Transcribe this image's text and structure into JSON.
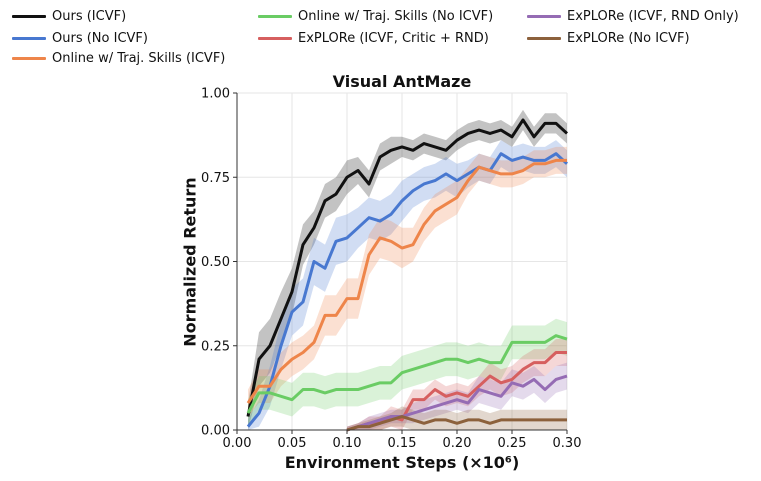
{
  "chart_data": {
    "type": "line",
    "title": "Visual AntMaze",
    "xlabel": "Environment Steps (×10⁶)",
    "ylabel": "Normalized Return",
    "xlim": [
      0.0,
      0.3
    ],
    "ylim": [
      0.0,
      1.0
    ],
    "xticks": [
      0.0,
      0.05,
      0.1,
      0.15,
      0.2,
      0.25,
      0.3
    ],
    "xtick_labels": [
      "0.00",
      "0.05",
      "0.10",
      "0.15",
      "0.20",
      "0.25",
      "0.30"
    ],
    "yticks": [
      0.0,
      0.25,
      0.5,
      0.75,
      1.0
    ],
    "ytick_labels": [
      "0.00",
      "0.25",
      "0.50",
      "0.75",
      "1.00"
    ],
    "grid": true,
    "legend_position": "top",
    "series": [
      {
        "name": "Ours (ICVF)",
        "color": "#111111",
        "x": [
          0.01,
          0.02,
          0.03,
          0.04,
          0.05,
          0.06,
          0.07,
          0.08,
          0.09,
          0.1,
          0.11,
          0.12,
          0.13,
          0.14,
          0.15,
          0.16,
          0.17,
          0.18,
          0.19,
          0.2,
          0.21,
          0.22,
          0.23,
          0.24,
          0.25,
          0.26,
          0.27,
          0.28,
          0.29,
          0.3
        ],
        "y": [
          0.04,
          0.21,
          0.25,
          0.33,
          0.41,
          0.55,
          0.6,
          0.68,
          0.7,
          0.75,
          0.77,
          0.73,
          0.81,
          0.83,
          0.84,
          0.83,
          0.85,
          0.84,
          0.83,
          0.86,
          0.88,
          0.89,
          0.88,
          0.89,
          0.87,
          0.92,
          0.87,
          0.91,
          0.91,
          0.88
        ],
        "band": [
          0.04,
          0.08,
          0.08,
          0.08,
          0.07,
          0.06,
          0.05,
          0.05,
          0.05,
          0.05,
          0.04,
          0.04,
          0.04,
          0.04,
          0.03,
          0.03,
          0.03,
          0.03,
          0.03,
          0.03,
          0.03,
          0.03,
          0.03,
          0.03,
          0.03,
          0.03,
          0.03,
          0.03,
          0.03,
          0.03
        ]
      },
      {
        "name": "Ours (No ICVF)",
        "color": "#4878d0",
        "x": [
          0.01,
          0.02,
          0.03,
          0.04,
          0.05,
          0.06,
          0.07,
          0.08,
          0.09,
          0.1,
          0.11,
          0.12,
          0.13,
          0.14,
          0.15,
          0.16,
          0.17,
          0.18,
          0.19,
          0.2,
          0.21,
          0.22,
          0.23,
          0.24,
          0.25,
          0.26,
          0.27,
          0.28,
          0.29,
          0.3
        ],
        "y": [
          0.01,
          0.05,
          0.13,
          0.25,
          0.35,
          0.38,
          0.5,
          0.48,
          0.56,
          0.57,
          0.6,
          0.63,
          0.62,
          0.64,
          0.68,
          0.71,
          0.73,
          0.74,
          0.76,
          0.74,
          0.76,
          0.78,
          0.77,
          0.82,
          0.8,
          0.81,
          0.8,
          0.8,
          0.82,
          0.79
        ],
        "band": [
          0.02,
          0.04,
          0.06,
          0.07,
          0.07,
          0.07,
          0.07,
          0.07,
          0.07,
          0.07,
          0.06,
          0.06,
          0.06,
          0.06,
          0.06,
          0.05,
          0.05,
          0.05,
          0.05,
          0.05,
          0.04,
          0.04,
          0.04,
          0.04,
          0.04,
          0.04,
          0.04,
          0.04,
          0.04,
          0.04
        ]
      },
      {
        "name": "Online w/ Traj. Skills (ICVF)",
        "color": "#ee854a",
        "x": [
          0.01,
          0.02,
          0.03,
          0.04,
          0.05,
          0.06,
          0.07,
          0.08,
          0.09,
          0.1,
          0.11,
          0.12,
          0.13,
          0.14,
          0.15,
          0.16,
          0.17,
          0.18,
          0.19,
          0.2,
          0.21,
          0.22,
          0.23,
          0.24,
          0.25,
          0.26,
          0.27,
          0.28,
          0.29,
          0.3
        ],
        "y": [
          0.08,
          0.13,
          0.13,
          0.18,
          0.21,
          0.23,
          0.26,
          0.34,
          0.34,
          0.39,
          0.39,
          0.52,
          0.57,
          0.56,
          0.54,
          0.55,
          0.61,
          0.65,
          0.67,
          0.69,
          0.74,
          0.78,
          0.77,
          0.76,
          0.76,
          0.77,
          0.79,
          0.79,
          0.8,
          0.8
        ],
        "band": [
          0.04,
          0.05,
          0.05,
          0.05,
          0.05,
          0.05,
          0.05,
          0.06,
          0.06,
          0.06,
          0.06,
          0.06,
          0.06,
          0.06,
          0.06,
          0.05,
          0.05,
          0.05,
          0.05,
          0.05,
          0.04,
          0.04,
          0.04,
          0.04,
          0.04,
          0.04,
          0.04,
          0.04,
          0.04,
          0.04
        ]
      },
      {
        "name": "Online w/ Traj. Skills (No ICVF)",
        "color": "#6acc64",
        "x": [
          0.01,
          0.02,
          0.03,
          0.04,
          0.05,
          0.06,
          0.07,
          0.08,
          0.09,
          0.1,
          0.11,
          0.12,
          0.13,
          0.14,
          0.15,
          0.16,
          0.17,
          0.18,
          0.19,
          0.2,
          0.21,
          0.22,
          0.23,
          0.24,
          0.25,
          0.26,
          0.27,
          0.28,
          0.29,
          0.3
        ],
        "y": [
          0.05,
          0.11,
          0.11,
          0.1,
          0.09,
          0.12,
          0.12,
          0.11,
          0.12,
          0.12,
          0.12,
          0.13,
          0.14,
          0.14,
          0.17,
          0.18,
          0.19,
          0.2,
          0.21,
          0.21,
          0.2,
          0.21,
          0.2,
          0.2,
          0.26,
          0.26,
          0.26,
          0.26,
          0.28,
          0.27
        ],
        "band": [
          0.04,
          0.05,
          0.05,
          0.05,
          0.05,
          0.05,
          0.05,
          0.05,
          0.05,
          0.05,
          0.05,
          0.05,
          0.05,
          0.05,
          0.05,
          0.05,
          0.05,
          0.05,
          0.05,
          0.05,
          0.05,
          0.05,
          0.05,
          0.05,
          0.05,
          0.05,
          0.05,
          0.05,
          0.05,
          0.05
        ]
      },
      {
        "name": "ExPLORe (ICVF, Critic + RND)",
        "color": "#d65f5f",
        "x": [
          0.1,
          0.11,
          0.12,
          0.13,
          0.14,
          0.15,
          0.16,
          0.17,
          0.18,
          0.19,
          0.2,
          0.21,
          0.22,
          0.23,
          0.24,
          0.25,
          0.26,
          0.27,
          0.28,
          0.29,
          0.3
        ],
        "y": [
          0.0,
          0.01,
          0.02,
          0.02,
          0.04,
          0.03,
          0.09,
          0.09,
          0.12,
          0.1,
          0.11,
          0.1,
          0.13,
          0.16,
          0.14,
          0.15,
          0.18,
          0.2,
          0.2,
          0.23,
          0.23
        ],
        "band": [
          0.01,
          0.01,
          0.02,
          0.02,
          0.03,
          0.03,
          0.03,
          0.03,
          0.03,
          0.03,
          0.03,
          0.03,
          0.03,
          0.04,
          0.04,
          0.04,
          0.04,
          0.04,
          0.04,
          0.04,
          0.04
        ]
      },
      {
        "name": "ExPLORe (ICVF, RND Only)",
        "color": "#956cb4",
        "x": [
          0.1,
          0.11,
          0.12,
          0.13,
          0.14,
          0.15,
          0.16,
          0.17,
          0.18,
          0.19,
          0.2,
          0.21,
          0.22,
          0.23,
          0.24,
          0.25,
          0.26,
          0.27,
          0.28,
          0.29,
          0.3
        ],
        "y": [
          0.0,
          0.01,
          0.02,
          0.03,
          0.04,
          0.04,
          0.05,
          0.06,
          0.07,
          0.08,
          0.09,
          0.08,
          0.12,
          0.11,
          0.1,
          0.14,
          0.13,
          0.15,
          0.12,
          0.15,
          0.16
        ],
        "band": [
          0.01,
          0.01,
          0.02,
          0.02,
          0.02,
          0.02,
          0.03,
          0.03,
          0.03,
          0.03,
          0.03,
          0.03,
          0.04,
          0.04,
          0.04,
          0.04,
          0.04,
          0.04,
          0.04,
          0.04,
          0.04
        ]
      },
      {
        "name": "ExPLORe (No ICVF)",
        "color": "#8c613c",
        "x": [
          0.1,
          0.11,
          0.12,
          0.13,
          0.14,
          0.15,
          0.16,
          0.17,
          0.18,
          0.19,
          0.2,
          0.21,
          0.22,
          0.23,
          0.24,
          0.25,
          0.26,
          0.27,
          0.28,
          0.29,
          0.3
        ],
        "y": [
          0.0,
          0.01,
          0.01,
          0.02,
          0.03,
          0.04,
          0.03,
          0.02,
          0.03,
          0.03,
          0.02,
          0.03,
          0.03,
          0.02,
          0.03,
          0.03,
          0.03,
          0.03,
          0.03,
          0.03,
          0.03
        ],
        "band": [
          0.01,
          0.01,
          0.02,
          0.02,
          0.02,
          0.03,
          0.03,
          0.03,
          0.03,
          0.03,
          0.03,
          0.03,
          0.03,
          0.03,
          0.03,
          0.03,
          0.03,
          0.03,
          0.03,
          0.03,
          0.03
        ]
      }
    ]
  }
}
